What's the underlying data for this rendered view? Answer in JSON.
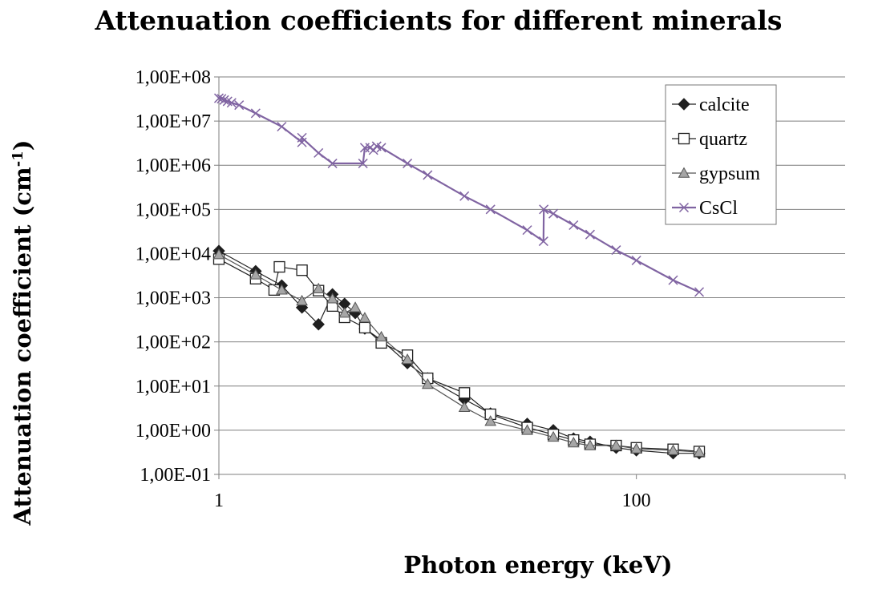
{
  "chart_data": {
    "type": "line",
    "title": "Attenuation coefficients for different minerals",
    "xlabel": "Photon energy (keV)",
    "ylabel_text": "Attenuation coefficient (cm",
    "ylabel_sup": "-1",
    "ylabel_end": ")",
    "x_scale": "log",
    "y_scale": "log",
    "xlim": [
      1,
      1000
    ],
    "ylim": [
      0.1,
      100000000
    ],
    "x_ticks": [
      {
        "value": 1,
        "label": "1"
      },
      {
        "value": 100,
        "label": "100"
      }
    ],
    "y_ticks": [
      {
        "value": 0.1,
        "label": "1,00E-01"
      },
      {
        "value": 1,
        "label": "1,00E+00"
      },
      {
        "value": 10,
        "label": "1,00E+01"
      },
      {
        "value": 100,
        "label": "1,00E+02"
      },
      {
        "value": 1000,
        "label": "1,00E+03"
      },
      {
        "value": 10000,
        "label": "1,00E+04"
      },
      {
        "value": 100000,
        "label": "1,00E+05"
      },
      {
        "value": 1000000,
        "label": "1,00E+06"
      },
      {
        "value": 10000000,
        "label": "1,00E+07"
      },
      {
        "value": 100000000,
        "label": "1,00E+08"
      }
    ],
    "grid": "horizontal",
    "legend_position": "top-right",
    "series": [
      {
        "name": "calcite",
        "color": "#222222",
        "marker": "diamond",
        "x": [
          1,
          1.5,
          2,
          2.5,
          3,
          3.5,
          4,
          4.5,
          5,
          6,
          8,
          10,
          15,
          20,
          30,
          40,
          50,
          60,
          80,
          100,
          150,
          200
        ],
        "y": [
          11500,
          4000,
          1900,
          600,
          250,
          1200,
          730,
          450,
          200,
          110,
          33,
          15,
          5,
          2.4,
          1.4,
          1.0,
          0.65,
          0.55,
          0.4,
          0.35,
          0.3,
          0.3
        ]
      },
      {
        "name": "quartz",
        "color": "#222222",
        "marker": "square",
        "x": [
          1,
          1.5,
          1.84,
          1.95,
          2.5,
          3,
          3.5,
          4,
          5,
          6,
          8,
          10,
          15,
          20,
          30,
          40,
          50,
          60,
          80,
          100,
          150,
          200
        ],
        "y": [
          7500,
          2700,
          1500,
          5000,
          4200,
          1450,
          650,
          360,
          210,
          95,
          50,
          15,
          7,
          2.3,
          1.15,
          0.8,
          0.6,
          0.48,
          0.45,
          0.4,
          0.37,
          0.33
        ]
      },
      {
        "name": "gypsum",
        "color": "#555555",
        "marker": "triangle",
        "x": [
          1,
          1.5,
          2,
          2.5,
          3,
          3.5,
          4,
          4.5,
          5,
          6,
          8,
          10,
          15,
          20,
          30,
          40,
          50,
          60,
          80,
          100,
          150,
          200
        ],
        "y": [
          9500,
          3300,
          1500,
          850,
          1600,
          950,
          450,
          600,
          350,
          130,
          40,
          11,
          3.3,
          1.6,
          1.0,
          0.7,
          0.52,
          0.45,
          0.45,
          0.38,
          0.35,
          0.32
        ]
      },
      {
        "name": "CsCl",
        "color": "#8064A2",
        "marker": "cross",
        "x": [
          1,
          1.03,
          1.06,
          1.1,
          1.15,
          1.25,
          1.5,
          2,
          2.5,
          2.5,
          3,
          3.5,
          4.9,
          5.0,
          5.3,
          5.5,
          5.7,
          6,
          8,
          10,
          15,
          20,
          30,
          35.9,
          36.0,
          40,
          50,
          60,
          80,
          100,
          150,
          200
        ],
        "y": [
          33000000,
          32000000,
          30000000,
          28000000,
          26000000,
          23000000,
          15000000,
          7500000,
          3300000,
          4200000,
          1900000,
          1100000,
          1100000,
          2500000,
          2500000,
          2200000,
          2700000,
          2500000,
          1100000,
          600000,
          200000,
          100000,
          34000,
          19000,
          100000,
          80000,
          44000,
          27000,
          12000,
          7000,
          2500,
          1350
        ]
      }
    ]
  }
}
